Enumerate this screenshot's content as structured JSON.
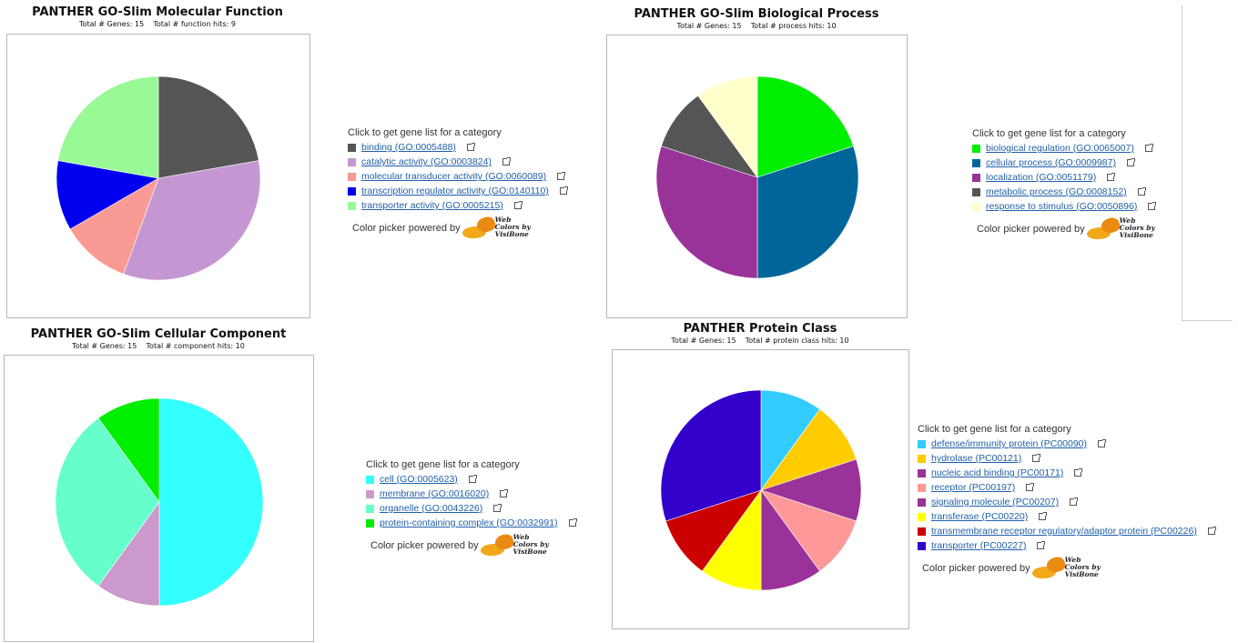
{
  "charts": [
    {
      "title": "PANTHER GO-Slim Molecular Function",
      "subtitle": "Total # Genes: 15    Total # function hits: 9",
      "legend_heading": "Click to get gene list for a category",
      "powered_label": "Color picker powered by",
      "logo_text": [
        "Web",
        "Colors by",
        "VisiBone"
      ],
      "chart_data": {
        "type": "pie",
        "title": "PANTHER GO-Slim Molecular Function",
        "categories": [
          "binding (GO:0005488)",
          "catalytic activity (GO:0003824)",
          "molecular transducer activity (GO:0060089)",
          "transcription regulator activity (GO:0140110)",
          "transporter activity (GO:0005215)"
        ],
        "values": [
          2,
          3,
          1,
          1,
          2
        ],
        "colors": [
          "#555555",
          "#c497d2",
          "#f99a94",
          "#0000ee",
          "#99f997"
        ]
      }
    },
    {
      "title": "PANTHER GO-Slim Biological Process",
      "subtitle": "Total # Genes: 15    Total # process hits: 10",
      "legend_heading": "Click to get gene list for a category",
      "powered_label": "Color picker powered by",
      "logo_text": [
        "Web",
        "Colors by",
        "VisiBone"
      ],
      "chart_data": {
        "type": "pie",
        "title": "PANTHER GO-Slim Biological Process",
        "categories": [
          "biological regulation (GO:0065007)",
          "cellular process (GO:0009987)",
          "localization (GO:0051179)",
          "metabolic process (GO:0008152)",
          "response to stimulus (GO:0050896)"
        ],
        "values": [
          2,
          3,
          3,
          1,
          1
        ],
        "colors": [
          "#00ee00",
          "#006699",
          "#993399",
          "#555555",
          "#ffffcc"
        ]
      }
    },
    {
      "title": "PANTHER GO-Slim Cellular Component",
      "subtitle": "Total # Genes: 15    Total # component hits: 10",
      "legend_heading": "Click to get gene list for a category",
      "powered_label": "Color picker powered by",
      "logo_text": [
        "Web",
        "Colors by",
        "VisiBone"
      ],
      "chart_data": {
        "type": "pie",
        "title": "PANTHER GO-Slim Cellular Component",
        "categories": [
          "cell (GO:0005623)",
          "membrane (GO:0016020)",
          "organelle (GO:0043226)",
          "protein-containing complex (GO:0032991)"
        ],
        "values": [
          5,
          1,
          3,
          1
        ],
        "colors": [
          "#33ffff",
          "#cc99cc",
          "#66ffcc",
          "#00ee00"
        ]
      }
    },
    {
      "title": "PANTHER Protein Class",
      "subtitle": "Total # Genes: 15    Total # protein class hits: 10",
      "legend_heading": "Click to get gene list for a category",
      "powered_label": "Color picker powered by",
      "logo_text": [
        "Web",
        "Colors by",
        "VisiBone"
      ],
      "chart_data": {
        "type": "pie",
        "title": "PANTHER Protein Class",
        "categories": [
          "defense/immunity protein (PC00090)",
          "hydrolase (PC00121)",
          "nucleic acid binding (PC00171)",
          "receptor (PC00197)",
          "signaling molecule (PC00207)",
          "transferase (PC00220)",
          "transmembrane receptor regulatory/adaptor protein (PC00226)",
          "transporter (PC00227)"
        ],
        "values": [
          1,
          1,
          1,
          1,
          1,
          1,
          1,
          3
        ],
        "colors": [
          "#33ccff",
          "#ffcc00",
          "#993399",
          "#ff9999",
          "#993399",
          "#ffff00",
          "#cc0000",
          "#3300cc"
        ]
      }
    }
  ]
}
